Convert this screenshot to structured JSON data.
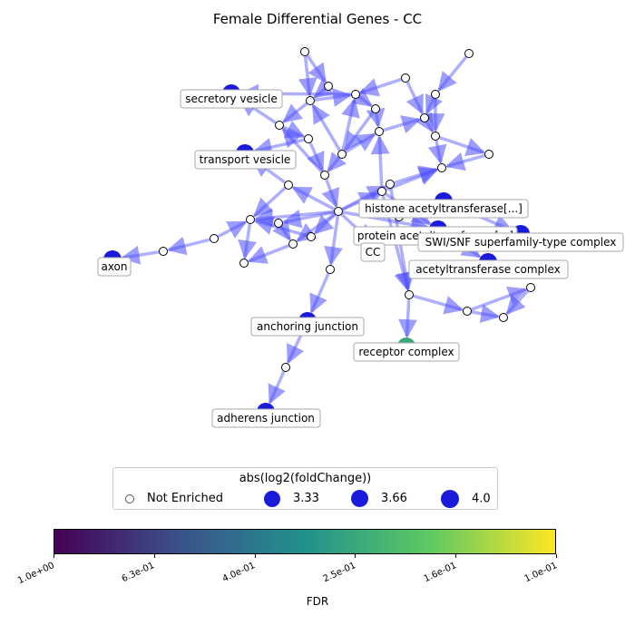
{
  "title": "Female Differential Genes - CC",
  "center_label": "CC",
  "nodes": [
    {
      "label": "secretory vesicle",
      "fdr": 0.999
    },
    {
      "label": "transport vesicle",
      "fdr": 0.999
    },
    {
      "label": "axon",
      "fdr": 0.999
    },
    {
      "label": "histone acetyltransferase[...]",
      "fdr": 0.999
    },
    {
      "label": "protein acetyltransferase[...]",
      "fdr": 0.999
    },
    {
      "label": "SWI/SNF superfamily-type complex",
      "fdr": 0.999
    },
    {
      "label": "acetyltransferase complex",
      "fdr": 0.999
    },
    {
      "label": "anchoring junction",
      "fdr": 0.999
    },
    {
      "label": "receptor complex",
      "fdr": 0.25
    },
    {
      "label": "adherens junction",
      "fdr": 0.999
    }
  ],
  "legend": {
    "title": "abs(log2(foldChange))",
    "items": [
      {
        "label": "Not Enriched"
      },
      {
        "label": "3.33"
      },
      {
        "label": "3.66"
      },
      {
        "label": "4.0"
      }
    ]
  },
  "colorbar": {
    "label": "FDR",
    "scale": "log",
    "range": [
      1.0,
      0.1
    ],
    "ticks": [
      "1.0e+00",
      "6.3e-01",
      "4.0e-01",
      "2.5e-01",
      "1.6e-01",
      "1.0e-01"
    ],
    "colors": [
      "#440154",
      "#3b528b",
      "#21918c",
      "#5ec962",
      "#fde725"
    ]
  },
  "colors": {
    "edge": "#4d4dff",
    "enriched_node": "#1a1adb",
    "not_enriched_fill": "#ffffff",
    "not_enriched_stroke": "#000000"
  }
}
